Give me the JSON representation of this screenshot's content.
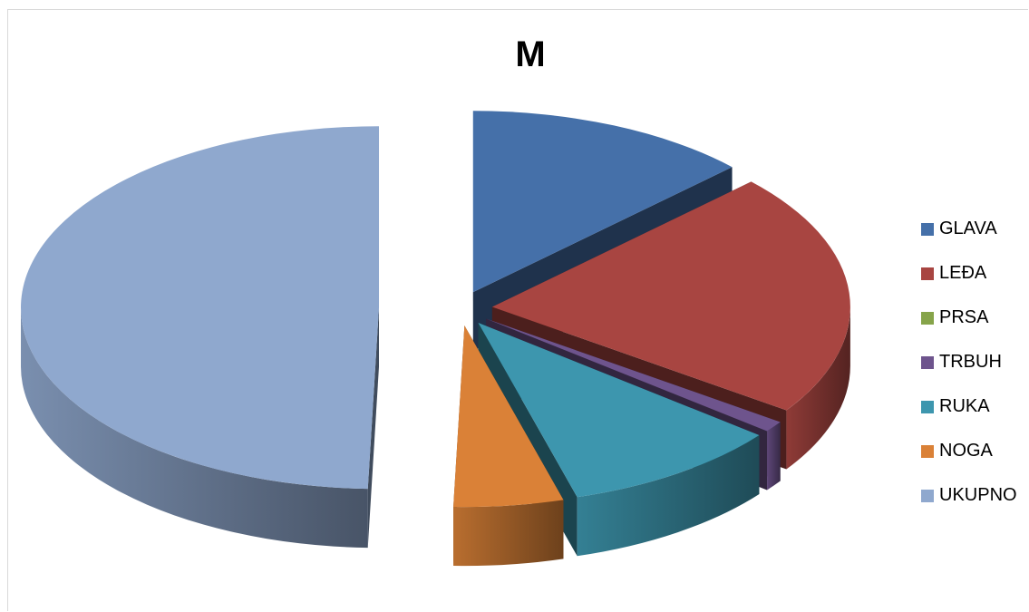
{
  "chart_data": {
    "type": "pie",
    "title": "M",
    "style": "3d-exploded",
    "categories": [
      "GLAVA",
      "LEĐA",
      "PRSA",
      "TRBUH",
      "RUKA",
      "NOGA",
      "UKUPNO"
    ],
    "values": [
      13,
      22,
      0,
      1,
      10,
      5,
      50
    ],
    "colors": [
      "#4570A9",
      "#A84541",
      "#86A44A",
      "#6E548D",
      "#3D96AE",
      "#DA8137",
      "#8FA8CE"
    ],
    "legend_position": "right"
  }
}
